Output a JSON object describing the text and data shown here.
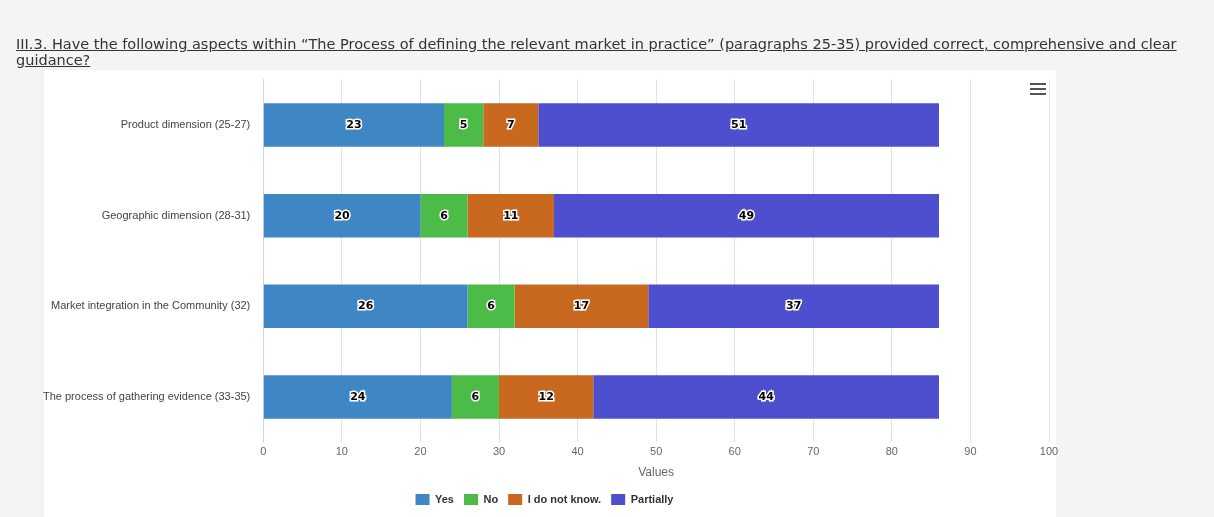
{
  "chart_data": {
    "type": "bar",
    "orientation": "horizontal",
    "stacked": true,
    "title": "III.3. Have the following aspects within “The Process of defining the relevant market in practice” (paragraphs 25-35) provided correct, comprehensive and clear guidance?",
    "xlabel": "Values",
    "categories": [
      "Product dimension (25-27)",
      "Geographic dimension (28-31)",
      "Market integration in the Community (32)",
      "The process of gathering evidence (33-35)"
    ],
    "series": [
      {
        "name": "Yes",
        "color": "#3f86c4",
        "values": [
          23,
          20,
          26,
          24
        ]
      },
      {
        "name": "No",
        "color": "#4cbb47",
        "values": [
          5,
          6,
          6,
          6
        ]
      },
      {
        "name": "I do not know.",
        "color": "#c8691f",
        "values": [
          7,
          11,
          17,
          12
        ]
      },
      {
        "name": "Partially",
        "color": "#4e4fcf",
        "values": [
          51,
          49,
          37,
          44
        ]
      }
    ],
    "xlim": [
      0,
      100
    ],
    "xticks": [
      0,
      10,
      20,
      30,
      40,
      50,
      60,
      70,
      80,
      90,
      100
    ],
    "grid": "x",
    "legend": "bottom",
    "data_labels": true
  }
}
